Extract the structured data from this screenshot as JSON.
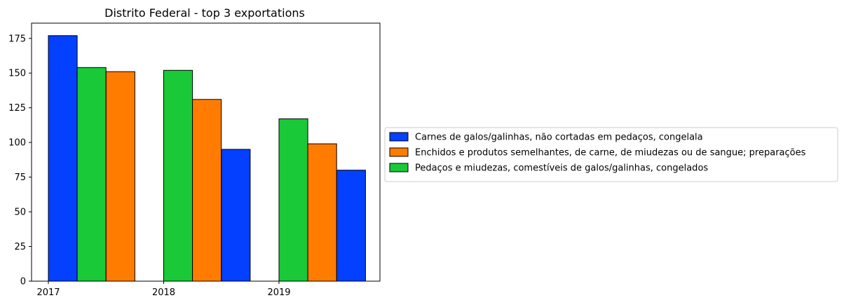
{
  "chart_data": {
    "type": "bar",
    "title": "Distrito Federal - top 3 exportations",
    "xlabel": "",
    "ylabel": "",
    "ylim": [
      0,
      186
    ],
    "yticks": [
      0,
      25,
      50,
      75,
      100,
      125,
      150,
      175
    ],
    "xtick_labels": [
      "2017",
      "2018",
      "2019"
    ],
    "grid": false,
    "legend_position": "right, outside plot",
    "bars": [
      {
        "year": "2017",
        "series": "Carnes de galos/galinhas, não cortadas em pedaços, congelala",
        "value": 177
      },
      {
        "year": "2017",
        "series": "Pedaços e miudezas, comestíveis de galos/galinhas, congelados",
        "value": 154
      },
      {
        "year": "2017",
        "series": "Enchidos e produtos semelhantes, de carne, de miudezas ou de sangue; preparações",
        "value": 151
      },
      {
        "year": "2018",
        "series": "Pedaços e miudezas, comestíveis de galos/galinhas, congelados",
        "value": 152
      },
      {
        "year": "2018",
        "series": "Enchidos e produtos semelhantes, de carne, de miudezas ou de sangue; preparações",
        "value": 131
      },
      {
        "year": "2018",
        "series": "Carnes de galos/galinhas, não cortadas em pedaços, congelala",
        "value": 95
      },
      {
        "year": "2019",
        "series": "Pedaços e miudezas, comestíveis de galos/galinhas, congelados",
        "value": 117
      },
      {
        "year": "2019",
        "series": "Enchidos e produtos semelhantes, de carne, de miudezas ou de sangue; preparações",
        "value": 99
      },
      {
        "year": "2019",
        "series": "Carnes de galos/galinhas, não cortadas em pedaços, congelala",
        "value": 80
      }
    ],
    "legend": [
      {
        "name": "Carnes de galos/galinhas, não cortadas em pedaços, congelala",
        "color": "#0340ff"
      },
      {
        "name": "Enchidos e produtos semelhantes, de carne, de miudezas ou de sangue; preparações",
        "color": "#ff7c00"
      },
      {
        "name": "Pedaços e miudezas, comestíveis de galos/galinhas, congelados",
        "color": "#1ac938"
      }
    ]
  }
}
